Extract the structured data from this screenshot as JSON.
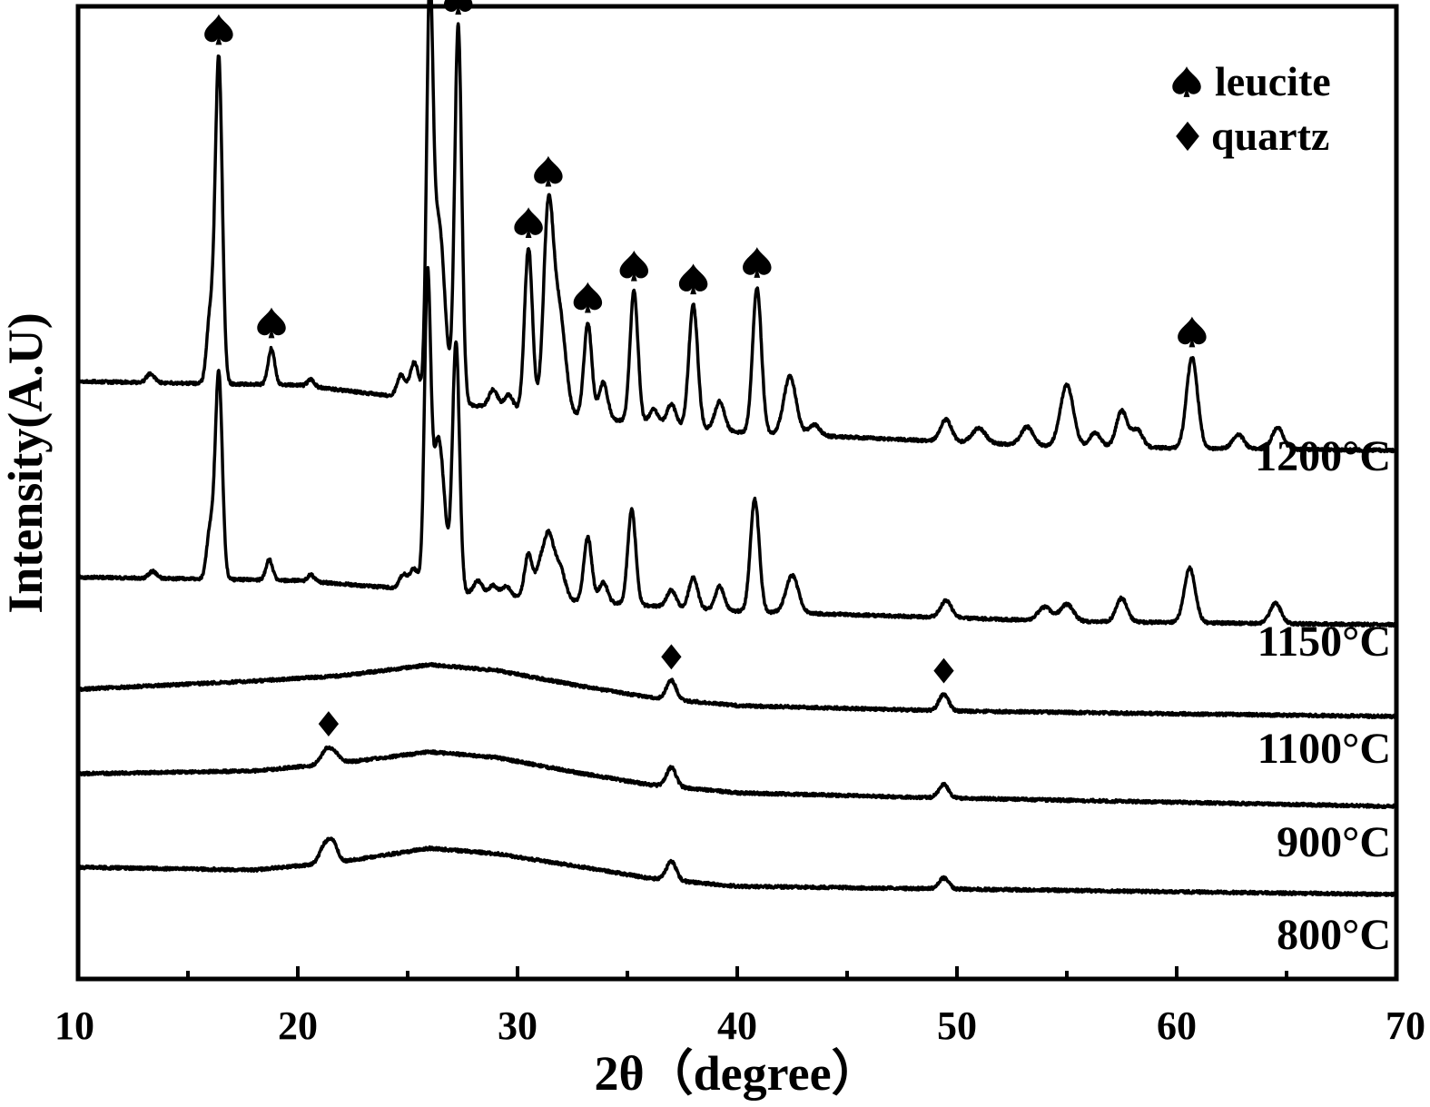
{
  "chart_data": {
    "type": "line",
    "xlabel": "2θ（degree）",
    "ylabel": "Intensity(A.U)",
    "xlim": [
      10,
      70
    ],
    "xticks": [
      "10",
      "20",
      "30",
      "40",
      "50",
      "60",
      "70"
    ],
    "legend": {
      "placement": "top-right",
      "entries": [
        {
          "marker": "spade-icon",
          "name": "leucite"
        },
        {
          "marker": "diamond-icon",
          "name": "quartz"
        }
      ]
    },
    "series": [
      {
        "name": "1200°C",
        "baseline": [
          [
            10,
            0.3
          ],
          [
            20,
            0.29
          ],
          [
            30,
            0.22
          ],
          [
            40,
            0.16
          ],
          [
            55,
            0.12
          ],
          [
            70,
            0.11
          ]
        ],
        "peaks": [
          {
            "x": 13.3,
            "h": 0.025,
            "w": 0.18
          },
          {
            "x": 16.0,
            "h": 0.18,
            "w": 0.15
          },
          {
            "x": 16.4,
            "h": 0.9,
            "w": 0.16
          },
          {
            "x": 18.8,
            "h": 0.1,
            "w": 0.15
          },
          {
            "x": 20.6,
            "h": 0.02,
            "w": 0.15
          },
          {
            "x": 24.7,
            "h": 0.06,
            "w": 0.18
          },
          {
            "x": 25.3,
            "h": 0.1,
            "w": 0.2
          },
          {
            "x": 26.0,
            "h": 1.0,
            "w": 0.14
          },
          {
            "x": 26.4,
            "h": 0.5,
            "w": 0.28
          },
          {
            "x": 27.3,
            "h": 1.04,
            "w": 0.16
          },
          {
            "x": 28.9,
            "h": 0.05,
            "w": 0.2
          },
          {
            "x": 29.6,
            "h": 0.04,
            "w": 0.2
          },
          {
            "x": 30.5,
            "h": 0.45,
            "w": 0.18
          },
          {
            "x": 31.4,
            "h": 0.54,
            "w": 0.22
          },
          {
            "x": 31.9,
            "h": 0.28,
            "w": 0.28
          },
          {
            "x": 33.2,
            "h": 0.26,
            "w": 0.18
          },
          {
            "x": 33.9,
            "h": 0.1,
            "w": 0.2
          },
          {
            "x": 35.3,
            "h": 0.36,
            "w": 0.18
          },
          {
            "x": 36.2,
            "h": 0.04,
            "w": 0.2
          },
          {
            "x": 37.0,
            "h": 0.06,
            "w": 0.2
          },
          {
            "x": 38.0,
            "h": 0.34,
            "w": 0.2
          },
          {
            "x": 39.2,
            "h": 0.08,
            "w": 0.22
          },
          {
            "x": 40.9,
            "h": 0.4,
            "w": 0.2
          },
          {
            "x": 42.4,
            "h": 0.16,
            "w": 0.28
          },
          {
            "x": 43.5,
            "h": 0.03,
            "w": 0.25
          },
          {
            "x": 49.5,
            "h": 0.06,
            "w": 0.25
          },
          {
            "x": 51.0,
            "h": 0.04,
            "w": 0.3
          },
          {
            "x": 53.2,
            "h": 0.05,
            "w": 0.28
          },
          {
            "x": 55.0,
            "h": 0.17,
            "w": 0.3
          },
          {
            "x": 56.3,
            "h": 0.04,
            "w": 0.25
          },
          {
            "x": 57.5,
            "h": 0.1,
            "w": 0.25
          },
          {
            "x": 58.2,
            "h": 0.05,
            "w": 0.25
          },
          {
            "x": 60.7,
            "h": 0.25,
            "w": 0.25
          },
          {
            "x": 62.8,
            "h": 0.04,
            "w": 0.25
          },
          {
            "x": 64.6,
            "h": 0.06,
            "w": 0.25
          }
        ]
      },
      {
        "name": "1150°C",
        "baseline": [
          [
            10,
            0.22
          ],
          [
            20,
            0.21
          ],
          [
            30,
            0.16
          ],
          [
            40,
            0.12
          ],
          [
            55,
            0.09
          ],
          [
            70,
            0.08
          ]
        ],
        "peaks": [
          {
            "x": 13.4,
            "h": 0.02,
            "w": 0.18
          },
          {
            "x": 16.0,
            "h": 0.14,
            "w": 0.15
          },
          {
            "x": 16.4,
            "h": 0.61,
            "w": 0.16
          },
          {
            "x": 18.7,
            "h": 0.06,
            "w": 0.15
          },
          {
            "x": 20.6,
            "h": 0.02,
            "w": 0.15
          },
          {
            "x": 24.8,
            "h": 0.04,
            "w": 0.18
          },
          {
            "x": 25.3,
            "h": 0.06,
            "w": 0.2
          },
          {
            "x": 25.9,
            "h": 0.85,
            "w": 0.14
          },
          {
            "x": 26.4,
            "h": 0.45,
            "w": 0.28
          },
          {
            "x": 27.2,
            "h": 0.73,
            "w": 0.16
          },
          {
            "x": 28.2,
            "h": 0.04,
            "w": 0.2
          },
          {
            "x": 28.9,
            "h": 0.03,
            "w": 0.2
          },
          {
            "x": 29.5,
            "h": 0.03,
            "w": 0.2
          },
          {
            "x": 30.5,
            "h": 0.13,
            "w": 0.18
          },
          {
            "x": 31.0,
            "h": 0.08,
            "w": 0.18
          },
          {
            "x": 31.4,
            "h": 0.18,
            "w": 0.22
          },
          {
            "x": 31.9,
            "h": 0.1,
            "w": 0.25
          },
          {
            "x": 33.2,
            "h": 0.19,
            "w": 0.18
          },
          {
            "x": 33.9,
            "h": 0.06,
            "w": 0.2
          },
          {
            "x": 35.2,
            "h": 0.28,
            "w": 0.18
          },
          {
            "x": 37.0,
            "h": 0.05,
            "w": 0.2
          },
          {
            "x": 38.0,
            "h": 0.09,
            "w": 0.2
          },
          {
            "x": 39.2,
            "h": 0.07,
            "w": 0.2
          },
          {
            "x": 40.8,
            "h": 0.33,
            "w": 0.2
          },
          {
            "x": 42.5,
            "h": 0.11,
            "w": 0.28
          },
          {
            "x": 49.5,
            "h": 0.05,
            "w": 0.25
          },
          {
            "x": 54.0,
            "h": 0.04,
            "w": 0.3
          },
          {
            "x": 55.0,
            "h": 0.05,
            "w": 0.3
          },
          {
            "x": 57.5,
            "h": 0.07,
            "w": 0.25
          },
          {
            "x": 60.6,
            "h": 0.16,
            "w": 0.25
          },
          {
            "x": 64.5,
            "h": 0.06,
            "w": 0.25
          }
        ]
      },
      {
        "name": "1100°C",
        "baseline": [
          [
            10,
            0.1
          ],
          [
            18,
            0.13
          ],
          [
            22,
            0.15
          ],
          [
            26,
            0.19
          ],
          [
            29,
            0.17
          ],
          [
            33,
            0.11
          ],
          [
            36,
            0.07
          ],
          [
            40,
            0.04
          ],
          [
            50,
            0.02
          ],
          [
            70,
            0.0
          ]
        ],
        "peaks": [
          {
            "x": 37.0,
            "h": 0.07,
            "w": 0.22
          },
          {
            "x": 49.4,
            "h": 0.06,
            "w": 0.22
          }
        ]
      },
      {
        "name": "900°C",
        "baseline": [
          [
            10,
            0.12
          ],
          [
            18,
            0.13
          ],
          [
            22,
            0.16
          ],
          [
            26,
            0.2
          ],
          [
            29,
            0.18
          ],
          [
            33,
            0.12
          ],
          [
            36,
            0.08
          ],
          [
            40,
            0.05
          ],
          [
            50,
            0.03
          ],
          [
            70,
            0.0
          ]
        ],
        "peaks": [
          {
            "x": 21.3,
            "h": 0.05,
            "w": 0.25
          },
          {
            "x": 21.7,
            "h": 0.03,
            "w": 0.25
          },
          {
            "x": 37.0,
            "h": 0.07,
            "w": 0.22
          },
          {
            "x": 49.4,
            "h": 0.05,
            "w": 0.22
          }
        ]
      },
      {
        "name": "800°C",
        "baseline": [
          [
            10,
            0.1
          ],
          [
            18,
            0.09
          ],
          [
            22,
            0.12
          ],
          [
            26,
            0.17
          ],
          [
            29,
            0.15
          ],
          [
            33,
            0.1
          ],
          [
            36,
            0.06
          ],
          [
            40,
            0.03
          ],
          [
            50,
            0.02
          ],
          [
            70,
            0.0
          ]
        ],
        "peaks": [
          {
            "x": 21.2,
            "h": 0.06,
            "w": 0.22
          },
          {
            "x": 21.6,
            "h": 0.07,
            "w": 0.22
          },
          {
            "x": 37.0,
            "h": 0.07,
            "w": 0.22
          },
          {
            "x": 49.4,
            "h": 0.04,
            "w": 0.22
          }
        ]
      }
    ],
    "annotations": [
      {
        "series": "1200°C",
        "marker": "spade-icon",
        "x": [
          16.4,
          18.8,
          26.0,
          27.3,
          30.5,
          31.4,
          33.2,
          35.3,
          38.0,
          40.9,
          60.7
        ]
      },
      {
        "series": "1100°C",
        "marker": "diamond-icon",
        "x": [
          37.0,
          49.4
        ]
      },
      {
        "series": "900°C",
        "marker": "diamond-icon",
        "x": [
          21.4
        ]
      }
    ]
  }
}
